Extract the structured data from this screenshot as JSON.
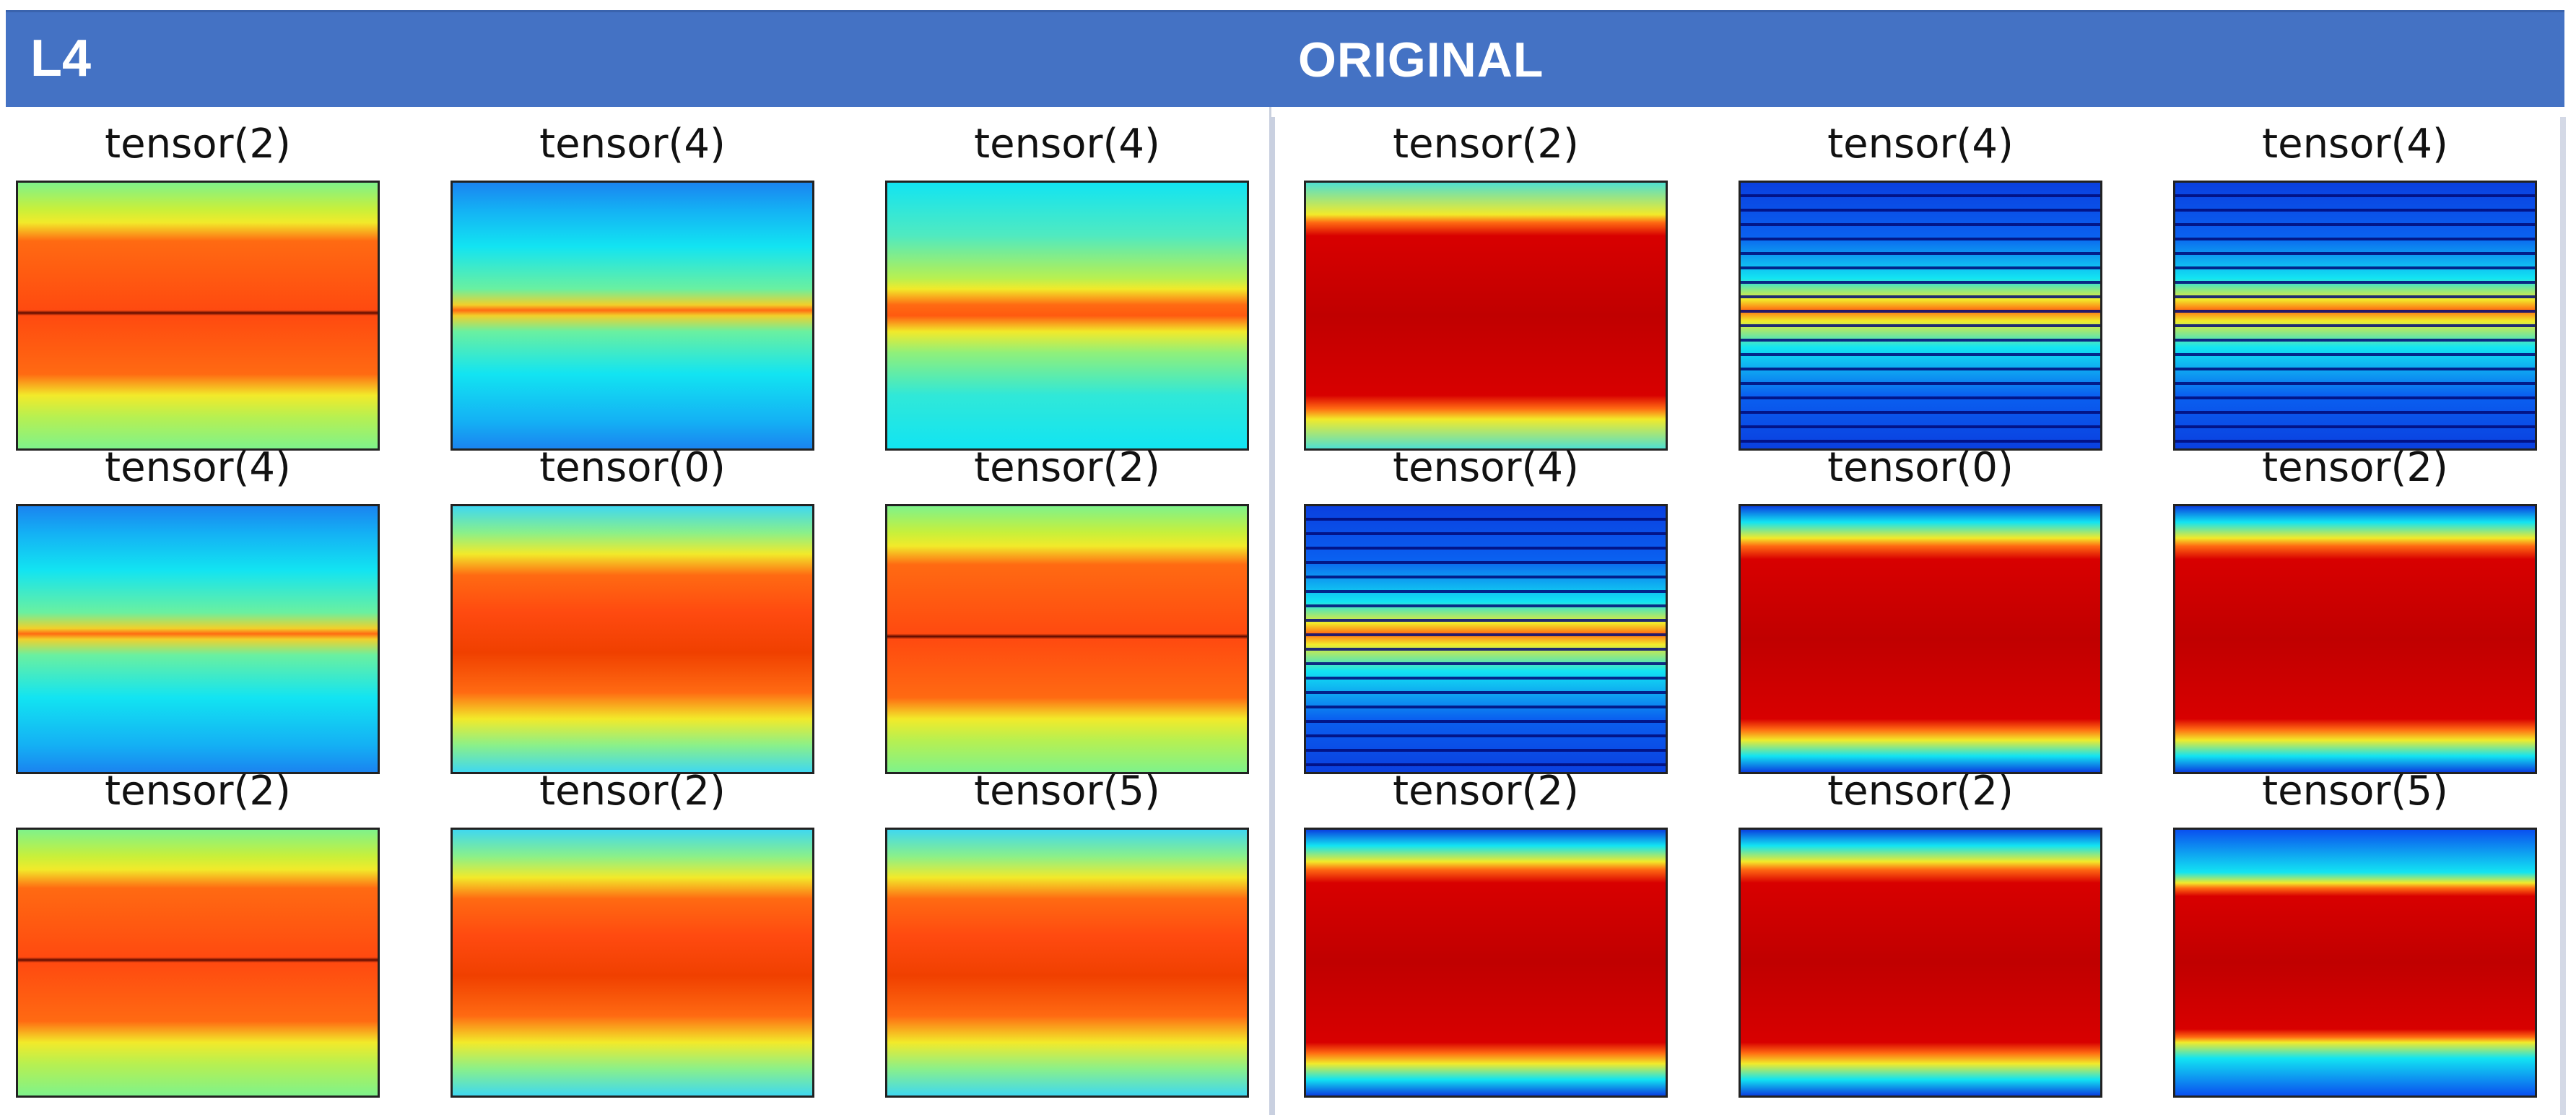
{
  "header": {
    "left_label": "L4",
    "center_label": "ORIGINAL",
    "color": "#4472C4"
  },
  "left_group": {
    "panels": [
      {
        "title": "tensor(2)",
        "profile": "red-center"
      },
      {
        "title": "tensor(4)",
        "profile": "cyan-orange-line"
      },
      {
        "title": "tensor(4)",
        "profile": "cyan-orange-band"
      },
      {
        "title": "tensor(4)",
        "profile": "cyan-orange-line"
      },
      {
        "title": "tensor(0)",
        "profile": "orange-wide"
      },
      {
        "title": "tensor(2)",
        "profile": "red-center"
      },
      {
        "title": "tensor(2)",
        "profile": "red-center"
      },
      {
        "title": "tensor(2)",
        "profile": "orange-wide"
      },
      {
        "title": "tensor(5)",
        "profile": "orange-wide"
      }
    ]
  },
  "right_group": {
    "panels": [
      {
        "title": "tensor(2)",
        "profile": "deep-red"
      },
      {
        "title": "tensor(4)",
        "profile": "striped-blue"
      },
      {
        "title": "tensor(4)",
        "profile": "striped-blue"
      },
      {
        "title": "tensor(4)",
        "profile": "striped-blue"
      },
      {
        "title": "tensor(0)",
        "profile": "deep-red-blue"
      },
      {
        "title": "tensor(2)",
        "profile": "deep-red-blue"
      },
      {
        "title": "tensor(2)",
        "profile": "deep-red-blue"
      },
      {
        "title": "tensor(2)",
        "profile": "deep-red-blue"
      },
      {
        "title": "tensor(5)",
        "profile": "red-block-blue"
      }
    ]
  },
  "palette": {
    "blue": "#0a3ad8",
    "cyan": "#12e4f2",
    "green": "#7ff28a",
    "yellow": "#f2ea2a",
    "orange": "#ff6a12",
    "red": "#d80000"
  }
}
